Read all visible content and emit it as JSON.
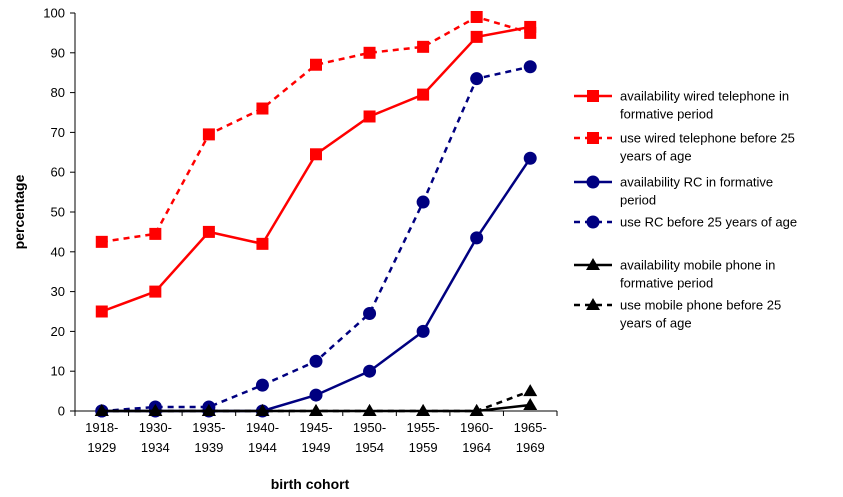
{
  "chart_data": {
    "type": "line",
    "title": "",
    "xlabel": "birth cohort",
    "ylabel": "percentage",
    "ylim": [
      0,
      100
    ],
    "yticks": [
      0,
      10,
      20,
      30,
      40,
      50,
      60,
      70,
      80,
      90,
      100
    ],
    "grid": false,
    "legend_position": "right",
    "categories": [
      [
        "1918-",
        "1929"
      ],
      [
        "1930-",
        "1934"
      ],
      [
        "1935-",
        "1939"
      ],
      [
        "1940-",
        "1944"
      ],
      [
        "1945-",
        "1949"
      ],
      [
        "1950-",
        "1954"
      ],
      [
        "1955-",
        "1959"
      ],
      [
        "1960-",
        "1964"
      ],
      [
        "1965-",
        "1969"
      ]
    ],
    "series": [
      {
        "name": "availability wired telephone in formative period",
        "legend_lines": [
          "availability wired telephone in",
          "formative period"
        ],
        "color": "#ff0000",
        "dash": "solid",
        "marker": "square",
        "values": [
          25,
          30,
          45,
          42,
          64.5,
          74,
          79.5,
          94,
          96.5
        ]
      },
      {
        "name": "use wired telephone before 25 years of age",
        "legend_lines": [
          "use wired telephone before 25",
          "years of age"
        ],
        "color": "#ff0000",
        "dash": "dashed",
        "marker": "square",
        "values": [
          42.5,
          44.5,
          69.5,
          76,
          87,
          90,
          91.5,
          99,
          95
        ]
      },
      {
        "name": "availability RC in formative period",
        "legend_lines": [
          "availability RC in formative",
          "period"
        ],
        "color": "#000080",
        "dash": "solid",
        "marker": "circle",
        "values": [
          0,
          0,
          0,
          0,
          4,
          10,
          20,
          43.5,
          63.5
        ]
      },
      {
        "name": "use RC before 25 years of age",
        "legend_lines": [
          "use RC before 25 years of age"
        ],
        "color": "#000080",
        "dash": "dashed",
        "marker": "circle",
        "values": [
          0,
          1,
          1,
          6.5,
          12.5,
          24.5,
          52.5,
          83.5,
          86.5
        ]
      },
      {
        "name": "availability mobile phone in formative period",
        "legend_lines": [
          "availability mobile phone in",
          "formative period"
        ],
        "color": "#000000",
        "dash": "solid",
        "marker": "triangle",
        "values": [
          0,
          0,
          0,
          0,
          0,
          0,
          0,
          0,
          1.5
        ]
      },
      {
        "name": "use mobile phone before 25 years of age",
        "legend_lines": [
          "use mobile phone before 25",
          "years of age"
        ],
        "color": "#000000",
        "dash": "dashed",
        "marker": "triangle",
        "values": [
          0,
          0,
          0,
          0,
          0,
          0,
          0,
          0,
          5
        ]
      }
    ]
  }
}
